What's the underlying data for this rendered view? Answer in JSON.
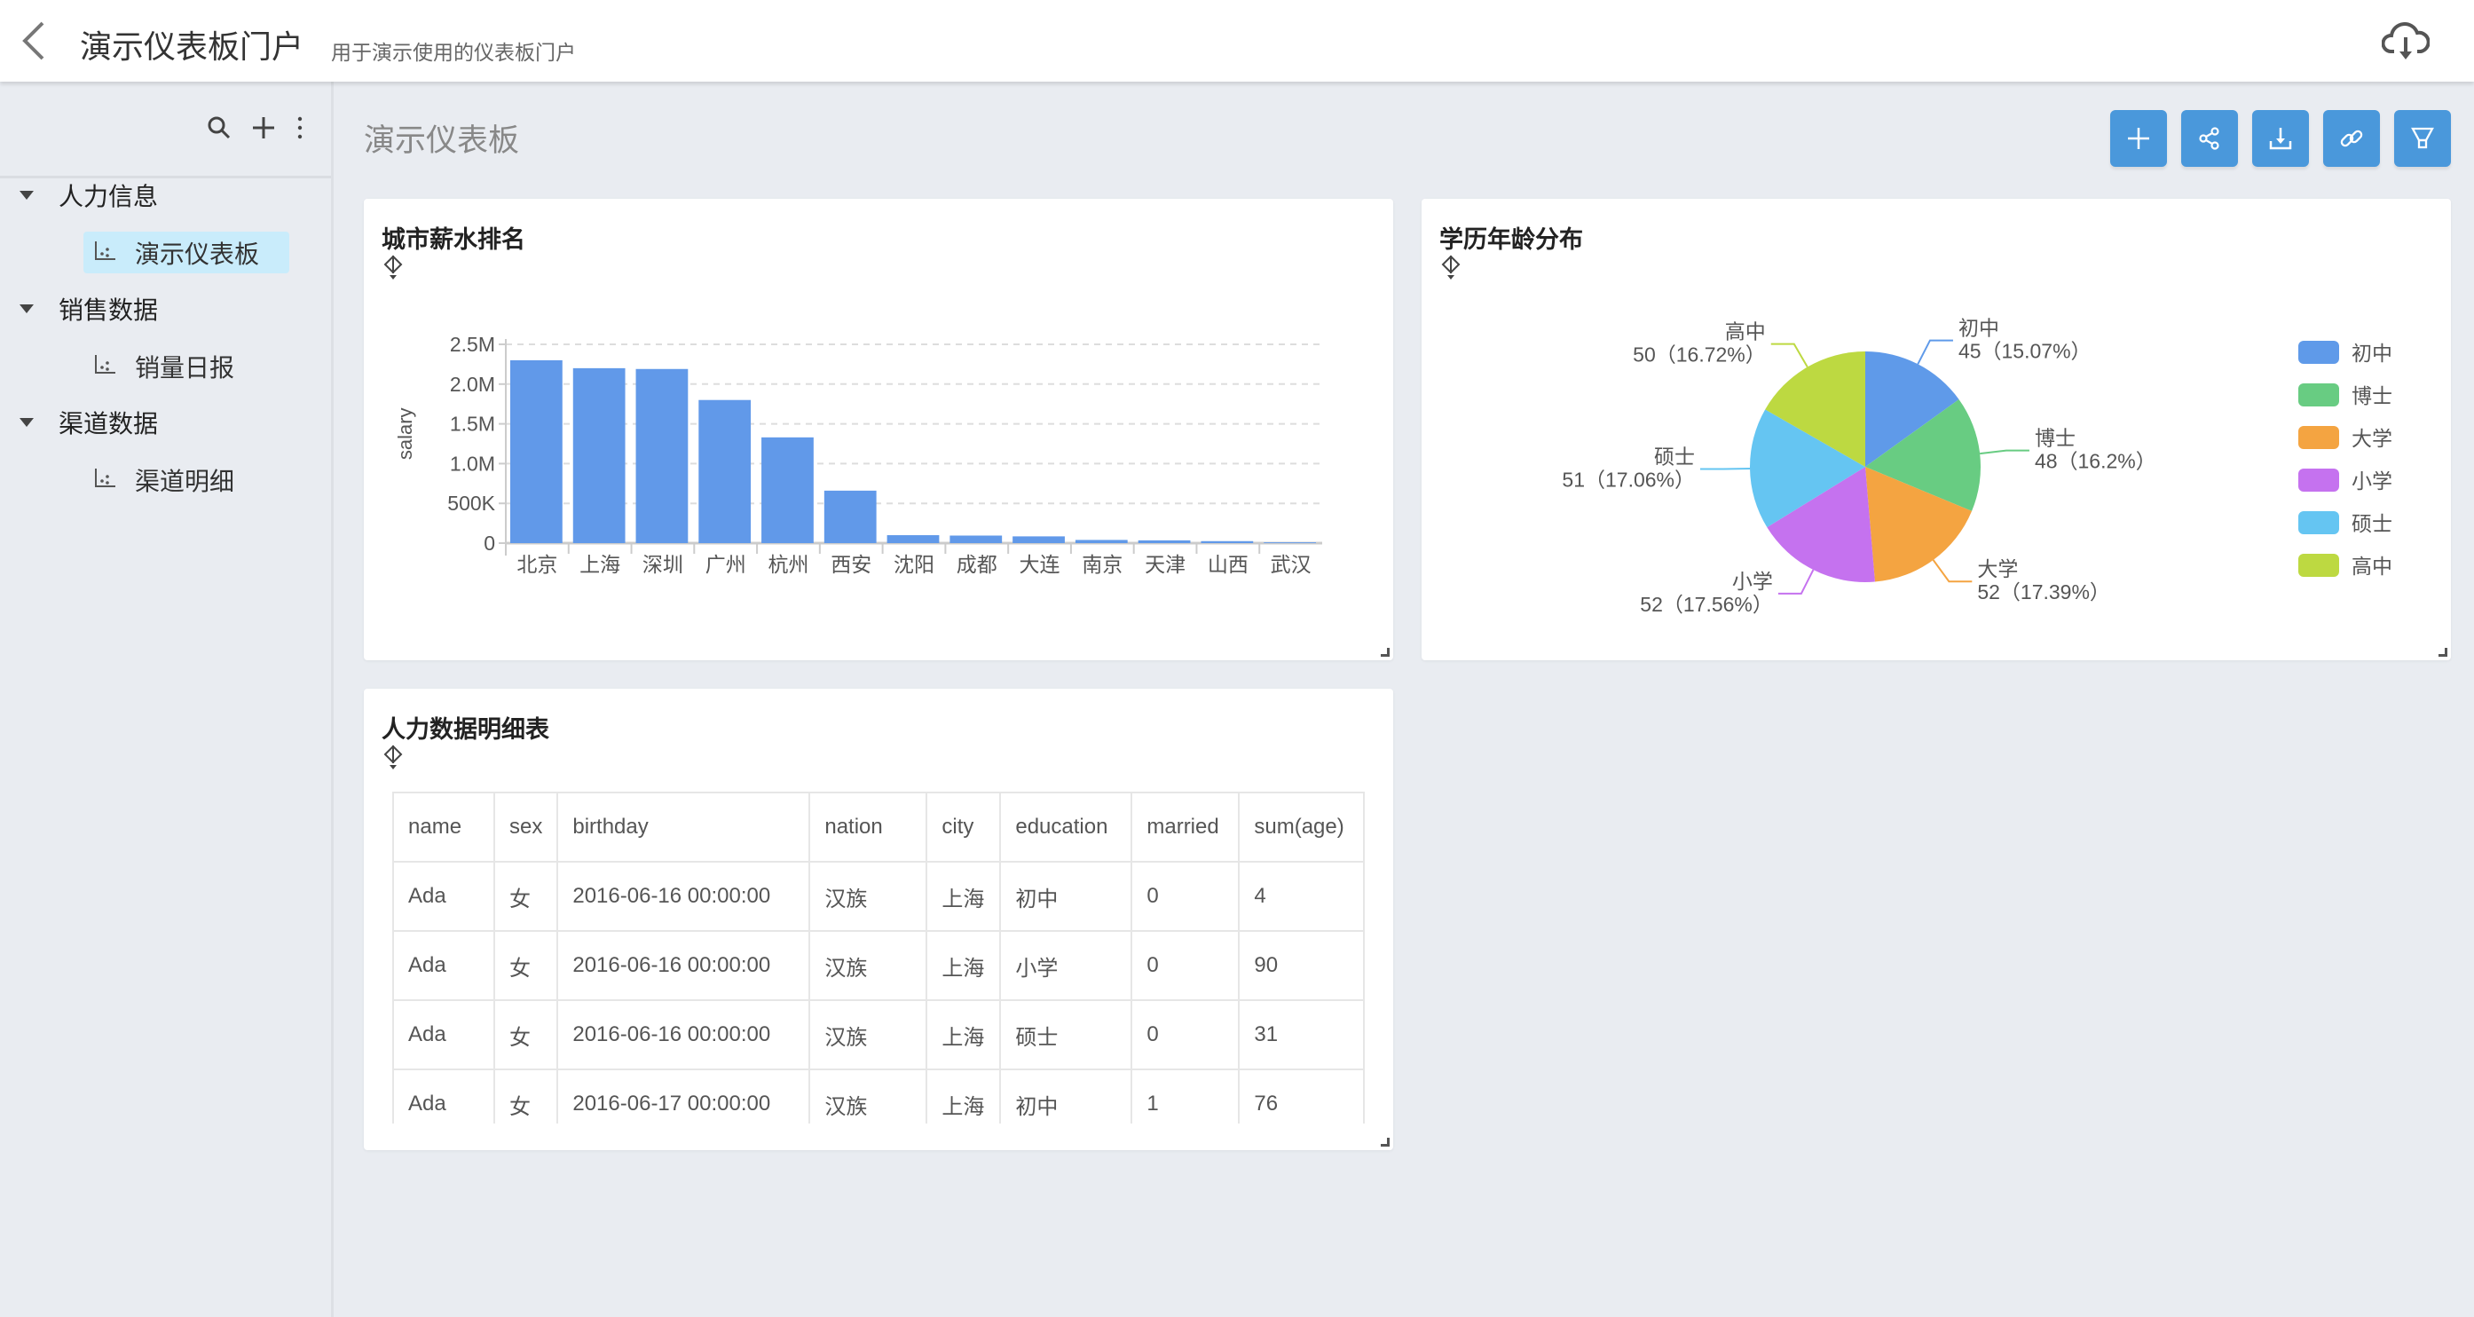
{
  "header": {
    "title": "演示仪表板门户",
    "subtitle": "用于演示使用的仪表板门户"
  },
  "sidebar": {
    "groups": [
      {
        "label": "人力信息",
        "items": [
          {
            "label": "演示仪表板",
            "active": true
          }
        ]
      },
      {
        "label": "销售数据",
        "items": [
          {
            "label": "销量日报"
          }
        ]
      },
      {
        "label": "渠道数据",
        "items": [
          {
            "label": "渠道明细"
          }
        ]
      }
    ]
  },
  "main": {
    "title": "演示仪表板",
    "toolbar": [
      "plus-icon",
      "share-icon",
      "download-icon",
      "link-icon",
      "filter-icon"
    ],
    "accent": "#4a98db"
  },
  "chart_data": [
    {
      "type": "bar",
      "title": "城市薪水排名",
      "ylabel": "salary",
      "xlabel": "",
      "ylim": [
        0,
        2500000
      ],
      "yticks": [
        "0",
        "500K",
        "1.0M",
        "1.5M",
        "2.0M",
        "2.5M"
      ],
      "grid": true,
      "color": "#6199e9",
      "categories": [
        "北京",
        "上海",
        "深圳",
        "广州",
        "杭州",
        "西安",
        "沈阳",
        "成都",
        "大连",
        "南京",
        "天津",
        "山西",
        "武汉"
      ],
      "values": [
        2300000,
        2200000,
        2190000,
        1800000,
        1330000,
        660000,
        100000,
        95000,
        85000,
        40000,
        35000,
        25000,
        10000
      ]
    },
    {
      "type": "pie",
      "title": "学历年龄分布",
      "legend": "right",
      "slices": [
        {
          "name": "初中",
          "value": 45,
          "percent": "15.07%",
          "color": "#5f9ae9"
        },
        {
          "name": "博士",
          "value": 48,
          "percent": "16.2%",
          "color": "#68cc82"
        },
        {
          "name": "大学",
          "value": 52,
          "percent": "17.39%",
          "color": "#f4a441"
        },
        {
          "name": "小学",
          "value": 52,
          "percent": "17.56%",
          "color": "#c572ef"
        },
        {
          "name": "硕士",
          "value": 51,
          "percent": "17.06%",
          "color": "#65c5f2"
        },
        {
          "name": "高中",
          "value": 50,
          "percent": "16.72%",
          "color": "#bdd941"
        }
      ]
    }
  ],
  "table": {
    "title": "人力数据明细表",
    "columns": [
      "name",
      "sex",
      "birthday",
      "nation",
      "city",
      "education",
      "married",
      "sum(age)"
    ],
    "rows": [
      [
        "Ada",
        "女",
        "2016-06-16 00:00:00",
        "汉族",
        "上海",
        "初中",
        "0",
        "4"
      ],
      [
        "Ada",
        "女",
        "2016-06-16 00:00:00",
        "汉族",
        "上海",
        "小学",
        "0",
        "90"
      ],
      [
        "Ada",
        "女",
        "2016-06-16 00:00:00",
        "汉族",
        "上海",
        "硕士",
        "0",
        "31"
      ],
      [
        "Ada",
        "女",
        "2016-06-17 00:00:00",
        "汉族",
        "上海",
        "初中",
        "1",
        "76"
      ]
    ]
  }
}
